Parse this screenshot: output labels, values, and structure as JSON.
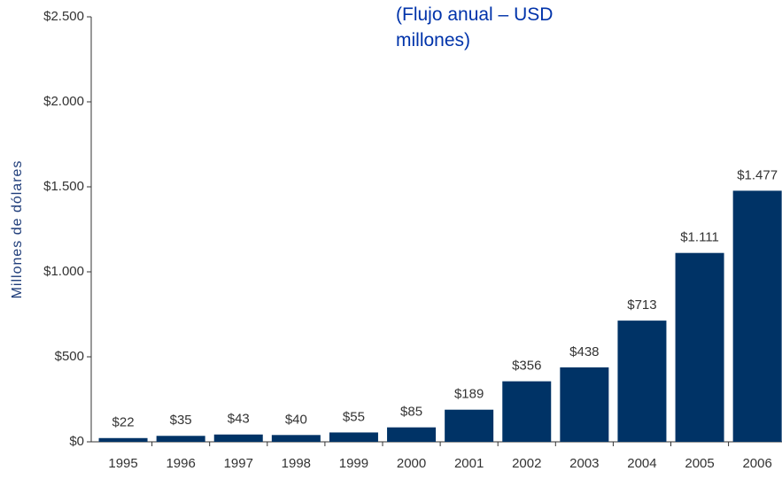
{
  "chart_data": {
    "type": "bar",
    "title": "(Flujo anual – USD millones)",
    "ylabel": "Millones de dólares",
    "categories": [
      "1995",
      "1996",
      "1997",
      "1998",
      "1999",
      "2000",
      "2001",
      "2002",
      "2003",
      "2004",
      "2005",
      "2006"
    ],
    "values": [
      22,
      35,
      43,
      40,
      55,
      85,
      189,
      356,
      438,
      713,
      1111,
      1477
    ],
    "value_labels": [
      "$22",
      "$35",
      "$43",
      "$40",
      "$55",
      "$85",
      "$189",
      "$356",
      "$438",
      "$713",
      "$1.111",
      "$1.477"
    ],
    "color": "#003366",
    "ylim": [
      0,
      2500
    ],
    "yticks": [
      {
        "value": 0,
        "label": "$0"
      },
      {
        "value": 500,
        "label": "$500"
      },
      {
        "value": 1000,
        "label": "$1.000"
      },
      {
        "value": 1500,
        "label": "$1.500"
      },
      {
        "value": 2000,
        "label": "$2.000"
      },
      {
        "value": 2500,
        "label": "$2.500"
      }
    ],
    "grid": false
  }
}
